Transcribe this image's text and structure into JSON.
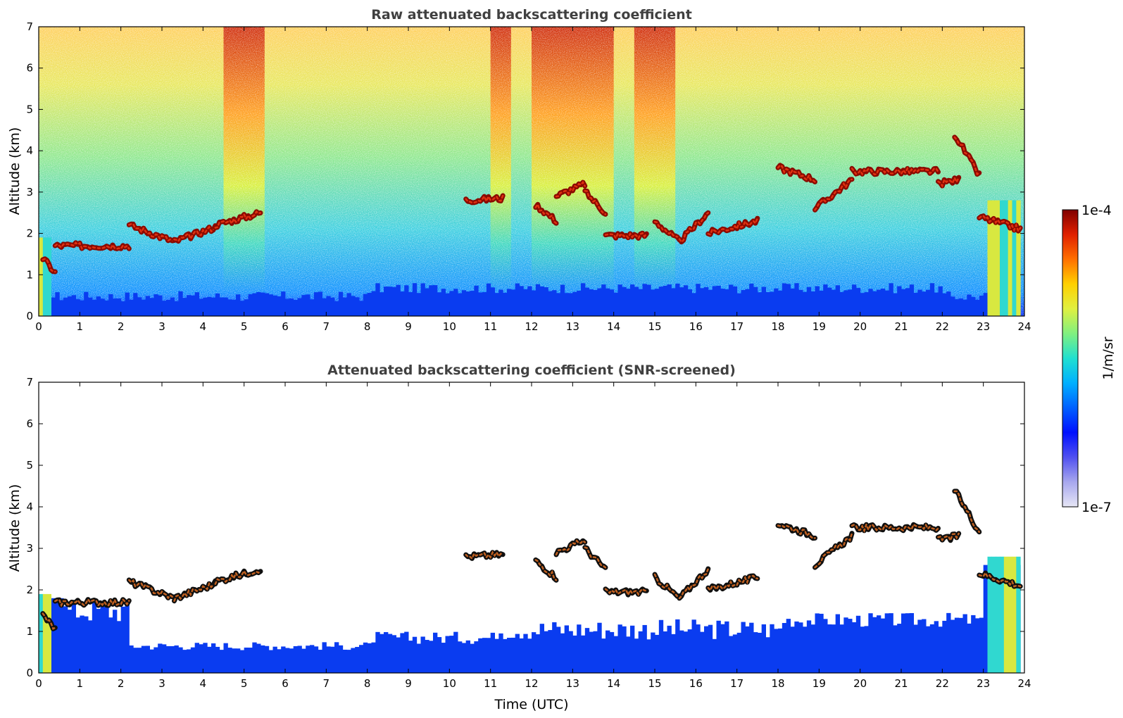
{
  "chart_data": [
    {
      "type": "heatmap",
      "title": "Raw attenuated backscattering coefficient",
      "xlabel": "",
      "ylabel": "Altitude (km)",
      "xlim": [
        0,
        24
      ],
      "ylim": [
        0,
        7
      ],
      "x_ticks": [
        "0",
        "1",
        "2",
        "3",
        "4",
        "5",
        "6",
        "7",
        "8",
        "9",
        "10",
        "11",
        "12",
        "13",
        "14",
        "15",
        "16",
        "17",
        "18",
        "19",
        "20",
        "21",
        "22",
        "23",
        "24"
      ],
      "y_ticks": [
        "0",
        "1",
        "2",
        "3",
        "4",
        "5",
        "6",
        "7"
      ],
      "screened": false
    },
    {
      "type": "heatmap",
      "title": "Attenuated backscattering coefficient (SNR-screened)",
      "xlabel": "Time (UTC)",
      "ylabel": "Altitude (km)",
      "xlim": [
        0,
        24
      ],
      "ylim": [
        0,
        7
      ],
      "x_ticks": [
        "0",
        "1",
        "2",
        "3",
        "4",
        "5",
        "6",
        "7",
        "8",
        "9",
        "10",
        "11",
        "12",
        "13",
        "14",
        "15",
        "16",
        "17",
        "18",
        "19",
        "20",
        "21",
        "22",
        "23",
        "24"
      ],
      "y_ticks": [
        "0",
        "1",
        "2",
        "3",
        "4",
        "5",
        "6",
        "7"
      ],
      "screened": true
    }
  ],
  "colorbar": {
    "label": "1/m/sr",
    "max_label": "1e-4",
    "min_label": "1e-7",
    "scale": "log",
    "range": [
      1e-07,
      0.0001
    ],
    "colormap": [
      "#e6e6f5",
      "#a8a8ee",
      "#5050f0",
      "#0010ff",
      "#0060ff",
      "#00b0ff",
      "#20e0d0",
      "#80f080",
      "#e0f040",
      "#ffd000",
      "#ff7000",
      "#e02000",
      "#800000"
    ]
  },
  "cloud_layers": {
    "segments": [
      {
        "t0": 0.1,
        "t1": 0.4,
        "h0": 1.4,
        "h1": 1.05
      },
      {
        "t0": 0.4,
        "t1": 2.2,
        "h0": 1.7,
        "h1": 1.7
      },
      {
        "t0": 2.2,
        "t1": 3.3,
        "h0": 2.2,
        "h1": 1.8
      },
      {
        "t0": 3.3,
        "t1": 4.3,
        "h0": 1.8,
        "h1": 2.15
      },
      {
        "t0": 4.3,
        "t1": 5.4,
        "h0": 2.2,
        "h1": 2.5
      },
      {
        "t0": 10.4,
        "t1": 11.3,
        "h0": 2.8,
        "h1": 2.85
      },
      {
        "t0": 12.1,
        "t1": 12.6,
        "h0": 2.7,
        "h1": 2.3
      },
      {
        "t0": 12.6,
        "t1": 13.3,
        "h0": 2.9,
        "h1": 3.2
      },
      {
        "t0": 13.3,
        "t1": 13.8,
        "h0": 3.0,
        "h1": 2.5
      },
      {
        "t0": 13.8,
        "t1": 14.8,
        "h0": 1.95,
        "h1": 1.95
      },
      {
        "t0": 15.0,
        "t1": 15.6,
        "h0": 2.3,
        "h1": 1.8
      },
      {
        "t0": 15.6,
        "t1": 16.3,
        "h0": 1.8,
        "h1": 2.5
      },
      {
        "t0": 16.3,
        "t1": 17.5,
        "h0": 2.0,
        "h1": 2.3
      },
      {
        "t0": 18.0,
        "t1": 18.9,
        "h0": 3.6,
        "h1": 3.3
      },
      {
        "t0": 18.9,
        "t1": 19.8,
        "h0": 2.6,
        "h1": 3.3
      },
      {
        "t0": 19.8,
        "t1": 21.9,
        "h0": 3.5,
        "h1": 3.5
      },
      {
        "t0": 21.9,
        "t1": 22.4,
        "h0": 3.2,
        "h1": 3.3
      },
      {
        "t0": 22.3,
        "t1": 22.9,
        "h0": 4.4,
        "h1": 3.4
      },
      {
        "t0": 22.9,
        "t1": 23.9,
        "h0": 2.4,
        "h1": 2.1
      }
    ]
  }
}
